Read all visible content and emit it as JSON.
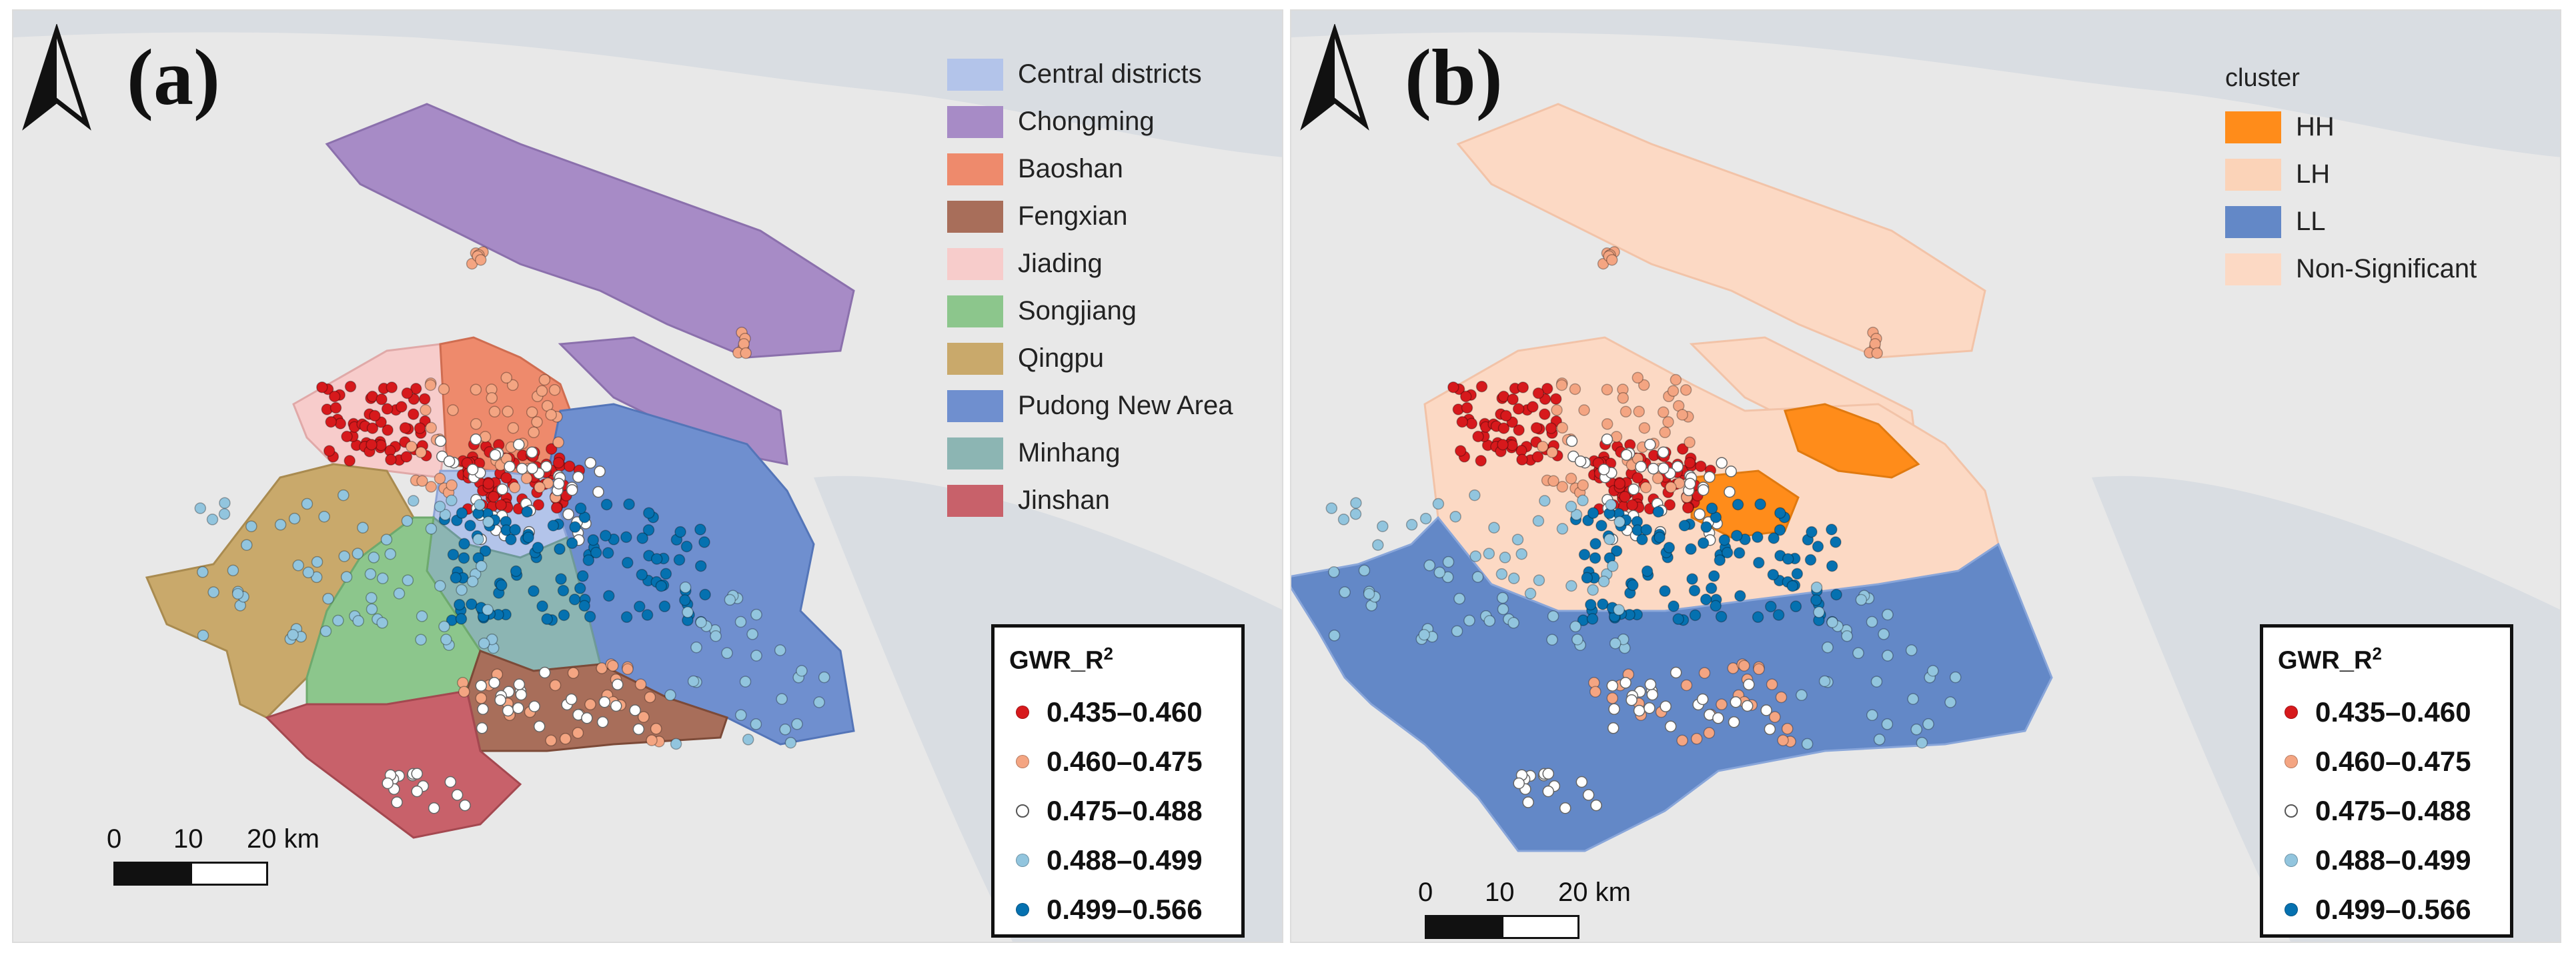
{
  "colors": {
    "districts": {
      "Central districts": "#b3c4ea",
      "Chongming": "#a78bc6",
      "Baoshan": "#ee8a6c",
      "Fengxian": "#a86e5a",
      "Jiading": "#f7cccb",
      "Songjiang": "#8cc68c",
      "Qingpu": "#c9a96b",
      "Pudong New Area": "#6f8fcf",
      "Minhang": "#8cb5b3",
      "Jinshan": "#c8616a"
    },
    "clusters": {
      "HH": "#ff8c1a",
      "LH": "#fbd3b8",
      "LL": "#6388c7",
      "Non-Significant": "#fcd9c4"
    },
    "gwr": [
      "#d7191c",
      "#f4a582",
      "#ffffff",
      "#92c5de",
      "#0571b0"
    ]
  },
  "panel_a": {
    "label": "(a)",
    "legend": [
      {
        "label": "Central districts",
        "key": "Central districts"
      },
      {
        "label": "Chongming",
        "key": "Chongming"
      },
      {
        "label": "Baoshan",
        "key": "Baoshan"
      },
      {
        "label": "Fengxian",
        "key": "Fengxian"
      },
      {
        "label": "Jiading",
        "key": "Jiading"
      },
      {
        "label": "Songjiang",
        "key": "Songjiang"
      },
      {
        "label": "Qingpu",
        "key": "Qingpu"
      },
      {
        "label": "Pudong New Area",
        "key": "Pudong New Area"
      },
      {
        "label": "Minhang",
        "key": "Minhang"
      },
      {
        "label": "Jinshan",
        "key": "Jinshan"
      }
    ],
    "gwr_title": "GWR_R",
    "gwr_sup": "2",
    "gwr_classes": [
      "0.435–0.460",
      "0.460–0.475",
      "0.475–0.488",
      "0.488–0.499",
      "0.499–0.566"
    ],
    "scale": {
      "l0": "0",
      "l1": "10",
      "l2": "20 km"
    }
  },
  "panel_b": {
    "label": "(b)",
    "legend_title": "cluster",
    "legend": [
      {
        "label": "HH",
        "key": "HH"
      },
      {
        "label": "LH",
        "key": "LH"
      },
      {
        "label": "LL",
        "key": "LL"
      },
      {
        "label": "Non-Significant",
        "key": "Non-Significant"
      }
    ],
    "gwr_title": "GWR_R",
    "gwr_sup": "2",
    "gwr_classes": [
      "0.435–0.460",
      "0.460–0.475",
      "0.475–0.488",
      "0.488–0.499",
      "0.499–0.566"
    ],
    "scale": {
      "l0": "0",
      "l1": "10",
      "l2": "20 km"
    }
  }
}
